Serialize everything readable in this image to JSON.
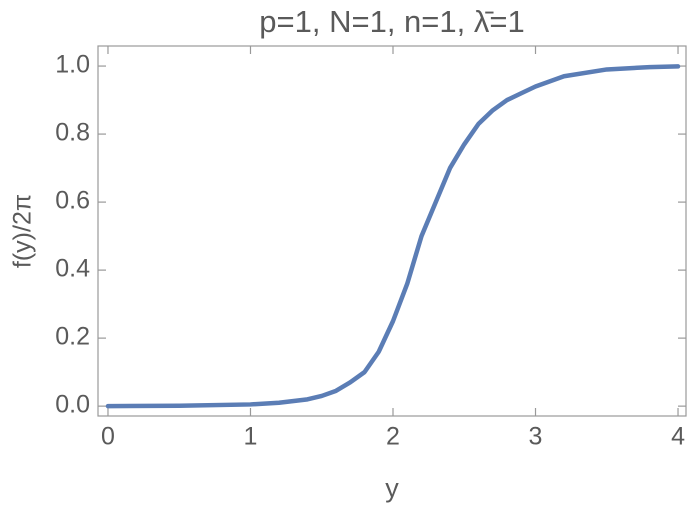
{
  "chart_data": {
    "type": "line",
    "title": "p=1, N=1, n=1, λ̄=1",
    "x_label": "y",
    "y_label": "f(y)/2π",
    "x": [
      0,
      0.5,
      1.0,
      1.2,
      1.4,
      1.5,
      1.6,
      1.7,
      1.8,
      1.9,
      2.0,
      2.1,
      2.2,
      2.3,
      2.4,
      2.5,
      2.6,
      2.7,
      2.8,
      2.9,
      3.0,
      3.2,
      3.5,
      3.8,
      4.0
    ],
    "series": [
      {
        "name": "f(y)/2π",
        "color": "#5b7db5",
        "values": [
          0,
          0.001,
          0.005,
          0.01,
          0.02,
          0.03,
          0.045,
          0.07,
          0.1,
          0.16,
          0.25,
          0.36,
          0.5,
          0.6,
          0.7,
          0.77,
          0.83,
          0.87,
          0.9,
          0.92,
          0.94,
          0.97,
          0.99,
          0.997,
          0.999
        ]
      }
    ],
    "xlim": [
      -0.07,
      4.056
    ],
    "ylim": [
      -0.029,
      1.059
    ],
    "xticks": [
      0,
      1,
      2,
      3,
      4
    ],
    "yticks": [
      {
        "value": 0,
        "label": "0.0"
      },
      0.2,
      0.4,
      0.6,
      0.8,
      {
        "value": 1,
        "label": "1.0"
      }
    ],
    "grid": false
  }
}
